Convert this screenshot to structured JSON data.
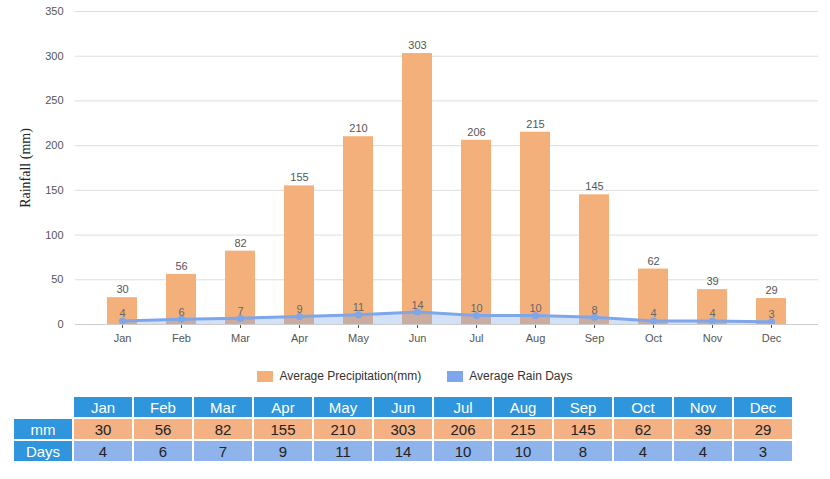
{
  "chart_data": {
    "type": "bar",
    "categories": [
      "Jan",
      "Feb",
      "Mar",
      "Apr",
      "May",
      "Jun",
      "Jul",
      "Aug",
      "Sep",
      "Oct",
      "Nov",
      "Dec"
    ],
    "series": [
      {
        "name": "Average Precipitation(mm)",
        "type": "bar",
        "color": "#f4b07a",
        "values": [
          30,
          56,
          82,
          155,
          210,
          303,
          206,
          215,
          145,
          62,
          39,
          29
        ]
      },
      {
        "name": "Average Rain Days",
        "type": "line",
        "color": "#7ea6ea",
        "marker": "circle",
        "values": [
          4,
          6,
          7,
          9,
          11,
          14,
          10,
          10,
          8,
          4,
          4,
          3
        ]
      }
    ],
    "ylabel": "Rainfall (mm)",
    "ylim": [
      0,
      350
    ],
    "yticks": [
      0,
      50,
      100,
      150,
      200,
      250,
      300,
      350
    ],
    "grid": true,
    "data_labels": true,
    "legend": "bottom"
  },
  "table": {
    "row_labels": [
      "mm",
      "Days"
    ]
  }
}
